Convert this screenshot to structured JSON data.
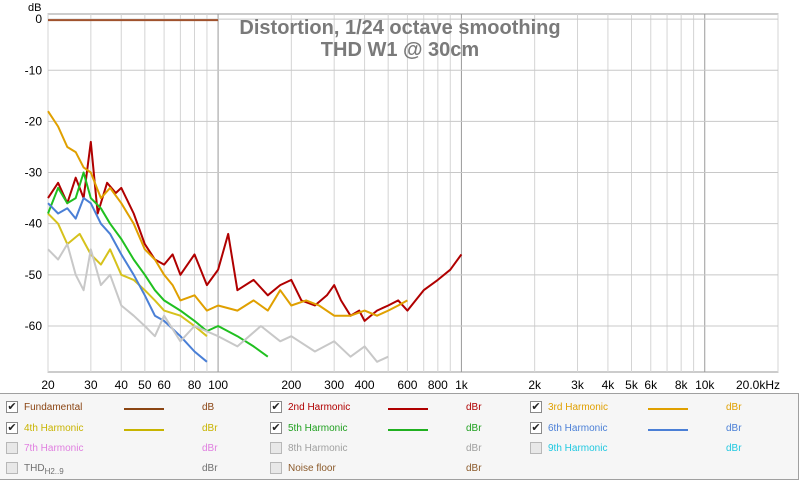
{
  "chart_data": {
    "type": "line",
    "title": "Distortion, 1/24 octave smoothing",
    "subtitle": "THD W1 @ 30cm",
    "ylabel": "dB",
    "xscale": "log",
    "xlim": [
      20,
      20000
    ],
    "ylim": [
      -69,
      1
    ],
    "x_ticks": [
      20,
      30,
      40,
      50,
      60,
      80,
      100,
      200,
      300,
      400,
      600,
      800,
      1000,
      2000,
      3000,
      4000,
      5000,
      6000,
      8000,
      10000,
      20000
    ],
    "x_tick_labels": [
      "20",
      "30",
      "40",
      "50",
      "60",
      "80",
      "100",
      "200",
      "300",
      "400",
      "600",
      "800",
      "1k",
      "2k",
      "3k",
      "4k",
      "5k",
      "6k",
      "8k",
      "10k",
      "20.0kHz"
    ],
    "y_ticks": [
      0,
      -10,
      -20,
      -30,
      -40,
      -50,
      -60
    ],
    "y_tick_labels": [
      "0",
      "-10",
      "-20",
      "-30",
      "-40",
      "-50",
      "-60"
    ],
    "grid": true,
    "series": [
      {
        "name": "Fundamental",
        "color": "#a0522d",
        "x": [
          20,
          30,
          50,
          80,
          100
        ],
        "y": [
          -0.2,
          -0.2,
          -0.2,
          -0.2,
          -0.2
        ]
      },
      {
        "name": "2nd Harmonic",
        "color": "#b00000",
        "x": [
          20,
          22,
          24,
          26,
          28,
          30,
          32,
          35,
          38,
          40,
          45,
          50,
          55,
          60,
          65,
          70,
          80,
          90,
          100,
          110,
          120,
          140,
          160,
          180,
          200,
          220,
          250,
          280,
          300,
          320,
          350,
          380,
          400,
          450,
          500,
          550,
          600,
          700,
          800,
          900,
          1000
        ],
        "y": [
          -35,
          -32,
          -36,
          -31,
          -35,
          -24,
          -38,
          -32,
          -34,
          -33,
          -38,
          -44,
          -47,
          -48,
          -46,
          -50,
          -46,
          -52,
          -49,
          -42,
          -53,
          -51,
          -54,
          -52,
          -51,
          -55,
          -56,
          -54,
          -52,
          -55,
          -58,
          -57,
          -59,
          -57,
          -56,
          -55,
          -57,
          -53,
          -51,
          -49,
          -46
        ]
      },
      {
        "name": "3rd Harmonic",
        "color": "#e0a000",
        "x": [
          20,
          22,
          24,
          26,
          28,
          30,
          33,
          36,
          40,
          45,
          50,
          55,
          60,
          65,
          70,
          80,
          90,
          100,
          120,
          140,
          160,
          180,
          200,
          230,
          260,
          300,
          350,
          400,
          450,
          500,
          550,
          600
        ],
        "y": [
          -18,
          -21,
          -25,
          -26,
          -29,
          -30,
          -35,
          -33,
          -36,
          -40,
          -45,
          -47,
          -50,
          -52,
          -55,
          -54,
          -57,
          -56,
          -57,
          -55,
          -57,
          -53,
          -56,
          -55,
          -56,
          -58,
          -58,
          -57,
          -58,
          -57,
          -56,
          -55
        ]
      },
      {
        "name": "4th Harmonic",
        "color": "#d6c21c",
        "x": [
          20,
          22,
          24,
          27,
          30,
          33,
          36,
          40,
          45,
          50,
          55,
          60,
          70,
          80,
          90
        ],
        "y": [
          -38,
          -40,
          -44,
          -42,
          -46,
          -48,
          -45,
          -50,
          -51,
          -53,
          -55,
          -57,
          -58,
          -60,
          -62
        ]
      },
      {
        "name": "5th Harmonic",
        "color": "#20c020",
        "x": [
          20,
          22,
          24,
          26,
          28,
          30,
          33,
          36,
          40,
          45,
          50,
          55,
          60,
          70,
          80,
          90,
          100,
          120,
          140,
          160
        ],
        "y": [
          -38,
          -33,
          -36,
          -35,
          -30,
          -35,
          -37,
          -40,
          -43,
          -47,
          -50,
          -53,
          -55,
          -57,
          -59,
          -61,
          -60,
          -62,
          -64,
          -66
        ]
      },
      {
        "name": "6th Harmonic",
        "color": "#4a7fd6",
        "x": [
          20,
          22,
          24,
          26,
          28,
          30,
          33,
          36,
          40,
          45,
          50,
          55,
          60,
          70,
          80,
          90
        ],
        "y": [
          -36,
          -38,
          -37,
          -39,
          -35,
          -36,
          -40,
          -42,
          -46,
          -50,
          -54,
          -58,
          -59,
          -62,
          -65,
          -67
        ]
      },
      {
        "name": "7th Harmonic",
        "color": "#e07fe0",
        "x": [],
        "y": []
      },
      {
        "name": "8th Harmonic",
        "color": "#c8c8c8",
        "x": [
          20,
          22,
          24,
          26,
          28,
          30,
          33,
          36,
          40,
          45,
          50,
          55,
          60,
          70,
          80,
          100,
          120,
          150,
          180,
          200,
          250,
          300,
          350,
          400,
          450,
          500
        ],
        "y": [
          -45,
          -47,
          -44,
          -50,
          -53,
          -45,
          -52,
          -50,
          -56,
          -58,
          -60,
          -62,
          -58,
          -63,
          -60,
          -62,
          -64,
          -60,
          -63,
          -62,
          -65,
          -63,
          -66,
          -64,
          -67,
          -66
        ]
      },
      {
        "name": "9th Harmonic",
        "color": "#20c8e0",
        "x": [],
        "y": []
      },
      {
        "name": "THD",
        "color": "#999999",
        "x": [],
        "y": []
      },
      {
        "name": "Noise floor",
        "color": "#8b5a2b",
        "x": [],
        "y": []
      }
    ]
  },
  "legend": {
    "items": [
      {
        "label": "Fundamental",
        "sub": "",
        "unit": "dB",
        "checked": true,
        "color": "#8b4513",
        "text_color": "#8b4513"
      },
      {
        "label": "2nd Harmonic",
        "sub": "",
        "unit": "dBr",
        "checked": true,
        "color": "#b00000",
        "text_color": "#b00000"
      },
      {
        "label": "3rd Harmonic",
        "sub": "",
        "unit": "dBr",
        "checked": true,
        "color": "#e0a000",
        "text_color": "#e0a000"
      },
      {
        "label": "4th Harmonic",
        "sub": "",
        "unit": "dBr",
        "checked": true,
        "color": "#c8b400",
        "text_color": "#c8b400"
      },
      {
        "label": "5th Harmonic",
        "sub": "",
        "unit": "dBr",
        "checked": true,
        "color": "#20b020",
        "text_color": "#20a020"
      },
      {
        "label": "6th Harmonic",
        "sub": "",
        "unit": "dBr",
        "checked": true,
        "color": "#4a7fd6",
        "text_color": "#4a7fd6"
      },
      {
        "label": "7th Harmonic",
        "sub": "",
        "unit": "dBr",
        "checked": false,
        "color": "",
        "text_color": "#e07fe0"
      },
      {
        "label": "8th Harmonic",
        "sub": "",
        "unit": "dBr",
        "checked": false,
        "color": "",
        "text_color": "#a0a0a0"
      },
      {
        "label": "9th Harmonic",
        "sub": "",
        "unit": "dBr",
        "checked": false,
        "color": "",
        "text_color": "#20c8e0"
      },
      {
        "label": "THD",
        "sub": "H2..9",
        "unit": "dBr",
        "checked": false,
        "color": "",
        "text_color": "#707070"
      },
      {
        "label": "Noise floor",
        "sub": "",
        "unit": "dBr",
        "checked": false,
        "color": "",
        "text_color": "#8b5a2b"
      }
    ]
  }
}
